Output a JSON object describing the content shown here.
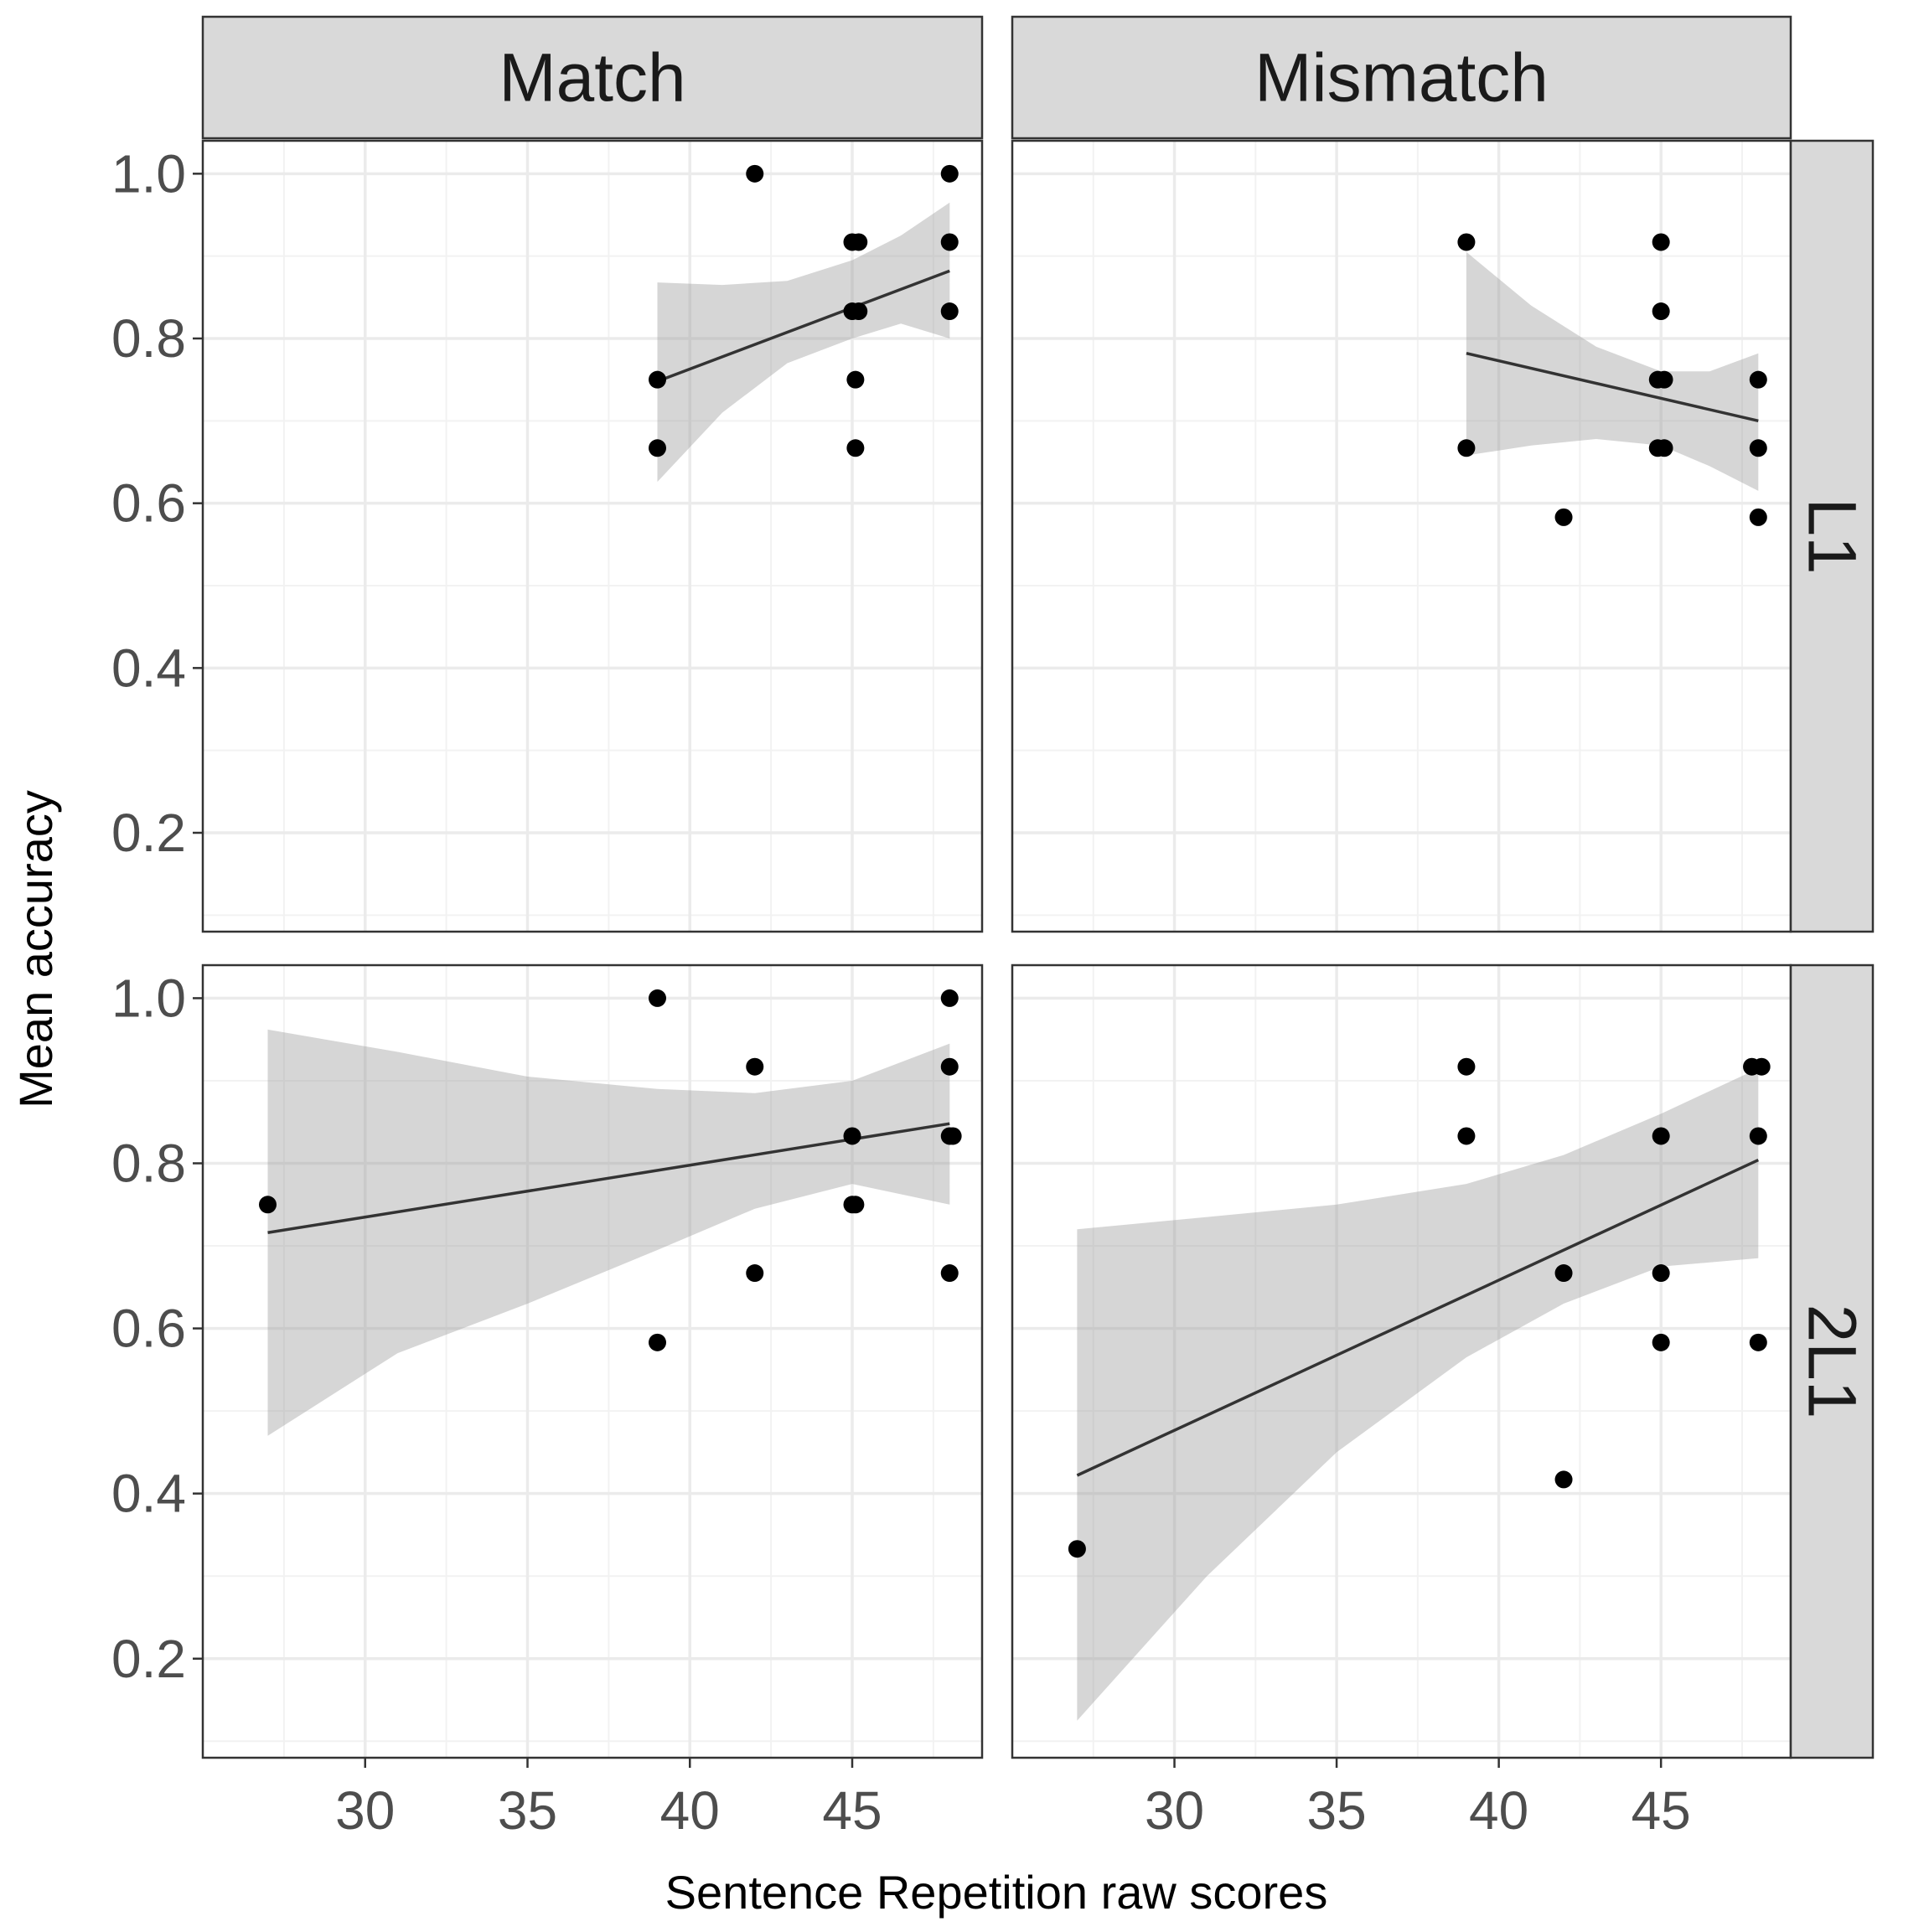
{
  "chart_data": {
    "type": "scatter",
    "xlabel": "Sentence Repetition raw scores",
    "ylabel": "Mean accuracy",
    "xlim": [
      25,
      49
    ],
    "ylim": [
      0.08,
      1.04
    ],
    "x_ticks": [
      "30",
      "35",
      "40",
      "45"
    ],
    "x_tick_values": [
      30,
      35,
      40,
      45
    ],
    "y_ticks": [
      "0.2",
      "0.4",
      "0.6",
      "0.8",
      "1.0"
    ],
    "y_tick_values": [
      0.2,
      0.4,
      0.6,
      0.8,
      1.0
    ],
    "grid": true,
    "col_labels": [
      "Match",
      "Mismatch"
    ],
    "row_labels": [
      "L1",
      "2L1"
    ],
    "panels": [
      {
        "col": "Match",
        "row": "L1",
        "points": [
          [
            39,
            0.75
          ],
          [
            39,
            0.667
          ],
          [
            42,
            1.0
          ],
          [
            45,
            0.917
          ],
          [
            45.2,
            0.917
          ],
          [
            45,
            0.833
          ],
          [
            45.2,
            0.833
          ],
          [
            45.1,
            0.75
          ],
          [
            45.1,
            0.667
          ],
          [
            48,
            1.0
          ],
          [
            48,
            0.917
          ],
          [
            48,
            0.833
          ]
        ],
        "fit": {
          "x": [
            39,
            48
          ],
          "y": [
            0.748,
            0.882
          ]
        },
        "band": {
          "upper": [
            [
              39,
              0.868
            ],
            [
              41,
              0.865
            ],
            [
              43,
              0.87
            ],
            [
              45,
              0.895
            ],
            [
              46.5,
              0.925
            ],
            [
              48,
              0.965
            ]
          ],
          "lower": [
            [
              39,
              0.626
            ],
            [
              41,
              0.71
            ],
            [
              43,
              0.77
            ],
            [
              45,
              0.8
            ],
            [
              46.5,
              0.818
            ],
            [
              48,
              0.8
            ]
          ]
        }
      },
      {
        "col": "Mismatch",
        "row": "L1",
        "points": [
          [
            39,
            0.917
          ],
          [
            39,
            0.667
          ],
          [
            42,
            0.583
          ],
          [
            45,
            0.917
          ],
          [
            45,
            0.833
          ],
          [
            44.9,
            0.75
          ],
          [
            45.1,
            0.75
          ],
          [
            44.9,
            0.667
          ],
          [
            45.1,
            0.667
          ],
          [
            48,
            0.75
          ],
          [
            48,
            0.667
          ],
          [
            48,
            0.583
          ]
        ],
        "fit": {
          "x": [
            39,
            48
          ],
          "y": [
            0.782,
            0.7
          ]
        },
        "band": {
          "upper": [
            [
              39,
              0.905
            ],
            [
              41,
              0.84
            ],
            [
              43,
              0.79
            ],
            [
              45,
              0.76
            ],
            [
              46.5,
              0.76
            ],
            [
              48,
              0.782
            ]
          ],
          "lower": [
            [
              39,
              0.658
            ],
            [
              41,
              0.67
            ],
            [
              43,
              0.678
            ],
            [
              45,
              0.67
            ],
            [
              46.5,
              0.645
            ],
            [
              48,
              0.615
            ]
          ]
        }
      },
      {
        "col": "Match",
        "row": "2L1",
        "points": [
          [
            27,
            0.75
          ],
          [
            39,
            1.0
          ],
          [
            39,
            0.583
          ],
          [
            42,
            0.917
          ],
          [
            42,
            0.667
          ],
          [
            45,
            0.833
          ],
          [
            45,
            0.75
          ],
          [
            45.1,
            0.75
          ],
          [
            48,
            1.0
          ],
          [
            48,
            0.917
          ],
          [
            48,
            0.833
          ],
          [
            48.1,
            0.833
          ],
          [
            48,
            0.667
          ]
        ],
        "fit": {
          "x": [
            27,
            48
          ],
          "y": [
            0.716,
            0.848
          ]
        },
        "band": {
          "upper": [
            [
              27,
              0.962
            ],
            [
              31,
              0.935
            ],
            [
              35,
              0.905
            ],
            [
              39,
              0.89
            ],
            [
              42,
              0.885
            ],
            [
              45,
              0.9
            ],
            [
              48,
              0.945
            ]
          ],
          "lower": [
            [
              27,
              0.47
            ],
            [
              31,
              0.57
            ],
            [
              35,
              0.63
            ],
            [
              39,
              0.695
            ],
            [
              42,
              0.745
            ],
            [
              45,
              0.775
            ],
            [
              48,
              0.75
            ]
          ]
        }
      },
      {
        "col": "Mismatch",
        "row": "2L1",
        "points": [
          [
            27,
            0.333
          ],
          [
            39,
            0.917
          ],
          [
            39,
            0.833
          ],
          [
            42,
            0.667
          ],
          [
            42,
            0.417
          ],
          [
            45,
            0.833
          ],
          [
            45,
            0.667
          ],
          [
            45,
            0.583
          ],
          [
            47.8,
            0.917
          ],
          [
            48.1,
            0.917
          ],
          [
            48,
            0.833
          ],
          [
            48,
            0.583
          ]
        ],
        "fit": {
          "x": [
            27,
            48
          ],
          "y": [
            0.422,
            0.804
          ]
        },
        "band": {
          "upper": [
            [
              27,
              0.72
            ],
            [
              31,
              0.735
            ],
            [
              35,
              0.75
            ],
            [
              39,
              0.775
            ],
            [
              42,
              0.81
            ],
            [
              45,
              0.86
            ],
            [
              48,
              0.915
            ]
          ],
          "lower": [
            [
              27,
              0.125
            ],
            [
              31,
              0.3
            ],
            [
              35,
              0.45
            ],
            [
              39,
              0.565
            ],
            [
              42,
              0.63
            ],
            [
              45,
              0.675
            ],
            [
              48,
              0.685
            ]
          ]
        }
      }
    ]
  }
}
